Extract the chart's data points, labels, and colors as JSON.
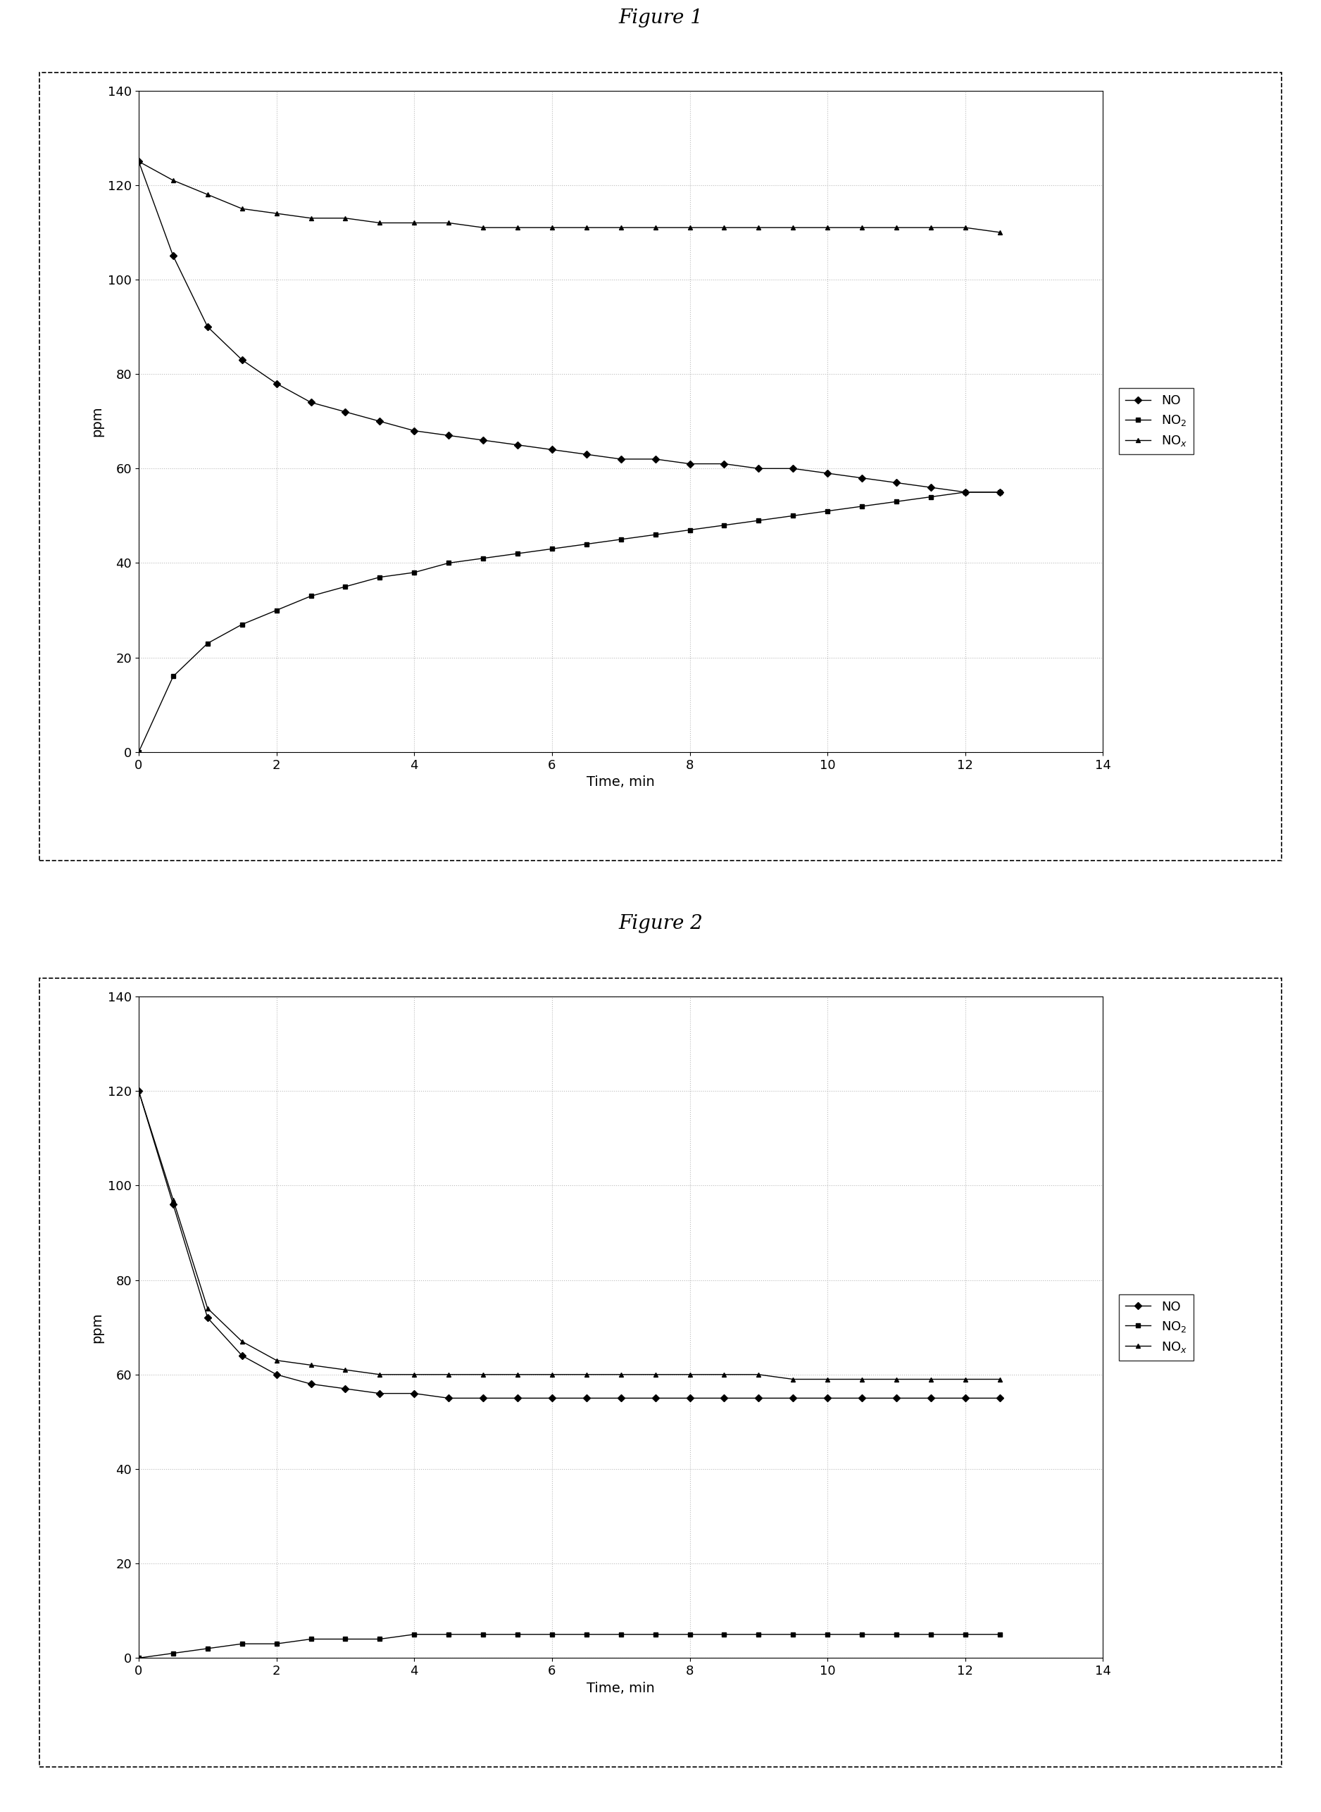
{
  "fig1_title": "Figure 1",
  "fig2_title": "Figure 2",
  "xlabel": "Time, min",
  "ylabel": "ppm",
  "ylim": [
    0,
    140
  ],
  "xlim": [
    0,
    14
  ],
  "yticks": [
    0,
    20,
    40,
    60,
    80,
    100,
    120,
    140
  ],
  "xticks": [
    0,
    2,
    4,
    6,
    8,
    10,
    12,
    14
  ],
  "legend_labels": [
    "NO",
    "NO2",
    "NOx"
  ],
  "fig1": {
    "NO_x": [
      0,
      0.5,
      1.0,
      1.5,
      2.0,
      2.5,
      3.0,
      3.5,
      4.0,
      4.5,
      5.0,
      5.5,
      6.0,
      6.5,
      7.0,
      7.5,
      8.0,
      8.5,
      9.0,
      9.5,
      10.0,
      10.5,
      11.0,
      11.5,
      12.0,
      12.5
    ],
    "NO_y": [
      125,
      105,
      90,
      83,
      78,
      74,
      72,
      70,
      68,
      67,
      66,
      65,
      64,
      63,
      62,
      62,
      61,
      61,
      60,
      60,
      59,
      58,
      57,
      56,
      55,
      55
    ],
    "NO2_x": [
      0,
      0.5,
      1.0,
      1.5,
      2.0,
      2.5,
      3.0,
      3.5,
      4.0,
      4.5,
      5.0,
      5.5,
      6.0,
      6.5,
      7.0,
      7.5,
      8.0,
      8.5,
      9.0,
      9.5,
      10.0,
      10.5,
      11.0,
      11.5,
      12.0,
      12.5
    ],
    "NO2_y": [
      0,
      16,
      23,
      27,
      30,
      33,
      35,
      37,
      38,
      40,
      41,
      42,
      43,
      44,
      45,
      46,
      47,
      48,
      49,
      50,
      51,
      52,
      53,
      54,
      55,
      55
    ],
    "NOx_x": [
      0,
      0.5,
      1.0,
      1.5,
      2.0,
      2.5,
      3.0,
      3.5,
      4.0,
      4.5,
      5.0,
      5.5,
      6.0,
      6.5,
      7.0,
      7.5,
      8.0,
      8.5,
      9.0,
      9.5,
      10.0,
      10.5,
      11.0,
      11.5,
      12.0,
      12.5
    ],
    "NOx_y": [
      125,
      121,
      118,
      115,
      114,
      113,
      113,
      112,
      112,
      112,
      111,
      111,
      111,
      111,
      111,
      111,
      111,
      111,
      111,
      111,
      111,
      111,
      111,
      111,
      111,
      110
    ]
  },
  "fig2": {
    "NO_x": [
      0,
      0.5,
      1.0,
      1.5,
      2.0,
      2.5,
      3.0,
      3.5,
      4.0,
      4.5,
      5.0,
      5.5,
      6.0,
      6.5,
      7.0,
      7.5,
      8.0,
      8.5,
      9.0,
      9.5,
      10.0,
      10.5,
      11.0,
      11.5,
      12.0,
      12.5
    ],
    "NO_y": [
      120,
      96,
      72,
      64,
      60,
      58,
      57,
      56,
      56,
      55,
      55,
      55,
      55,
      55,
      55,
      55,
      55,
      55,
      55,
      55,
      55,
      55,
      55,
      55,
      55,
      55
    ],
    "NO2_x": [
      0,
      0.5,
      1.0,
      1.5,
      2.0,
      2.5,
      3.0,
      3.5,
      4.0,
      4.5,
      5.0,
      5.5,
      6.0,
      6.5,
      7.0,
      7.5,
      8.0,
      8.5,
      9.0,
      9.5,
      10.0,
      10.5,
      11.0,
      11.5,
      12.0,
      12.5
    ],
    "NO2_y": [
      0,
      1,
      2,
      3,
      3,
      4,
      4,
      4,
      5,
      5,
      5,
      5,
      5,
      5,
      5,
      5,
      5,
      5,
      5,
      5,
      5,
      5,
      5,
      5,
      5,
      5
    ],
    "NOx_x": [
      0,
      0.5,
      1.0,
      1.5,
      2.0,
      2.5,
      3.0,
      3.5,
      4.0,
      4.5,
      5.0,
      5.5,
      6.0,
      6.5,
      7.0,
      7.5,
      8.0,
      8.5,
      9.0,
      9.5,
      10.0,
      10.5,
      11.0,
      11.5,
      12.0,
      12.5
    ],
    "NOx_y": [
      120,
      97,
      74,
      67,
      63,
      62,
      61,
      60,
      60,
      60,
      60,
      60,
      60,
      60,
      60,
      60,
      60,
      60,
      60,
      59,
      59,
      59,
      59,
      59,
      59,
      59
    ]
  },
  "line_color": "#000000",
  "marker_NO": "D",
  "marker_NO2": "s",
  "marker_NOx": "^",
  "marker_size": 5,
  "bg_color": "#ffffff",
  "grid_color": "#bbbbbb",
  "title_fontsize": 20,
  "label_fontsize": 14,
  "tick_fontsize": 13,
  "legend_fontsize": 13
}
